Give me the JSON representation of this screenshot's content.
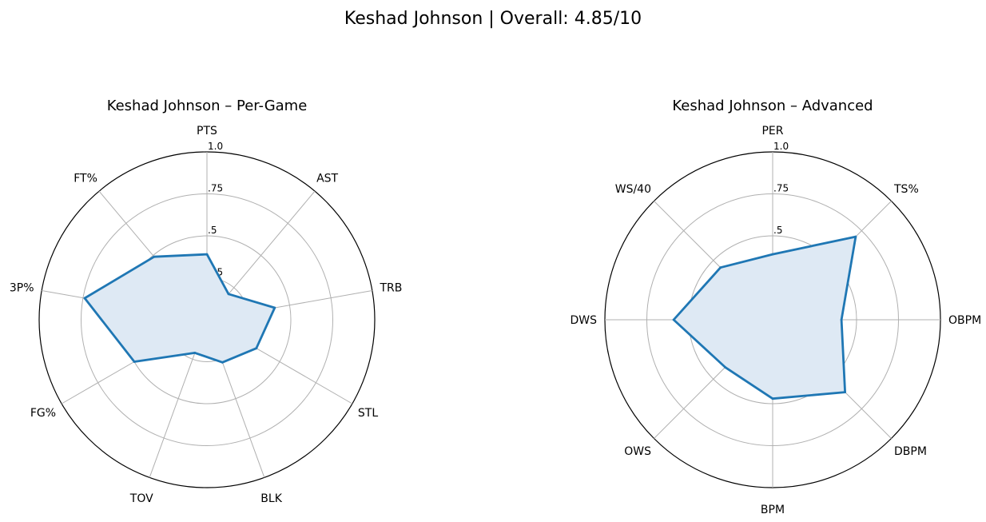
{
  "figure": {
    "suptitle": "Keshad Johnson | Overall: 4.85/10"
  },
  "chart_data": [
    {
      "type": "radar",
      "title": "Keshad Johnson – Per-Game",
      "categories": [
        "PTS",
        "AST",
        "TRB",
        "STL",
        "BLK",
        "TOV",
        "FG%",
        "3P%",
        "FT%"
      ],
      "values": [
        0.39,
        0.2,
        0.41,
        0.34,
        0.27,
        0.21,
        0.5,
        0.74,
        0.49
      ],
      "rlim": [
        0,
        1.0
      ],
      "rticks": [
        0.25,
        0.5,
        0.75,
        1.0
      ],
      "rtick_labels": [
        ".25",
        ".5",
        ".75",
        "1.0"
      ],
      "line_color": "#1f77b4",
      "fill_color": "#dee9f4",
      "grid": true
    },
    {
      "type": "radar",
      "title": "Keshad Johnson – Advanced",
      "categories": [
        "PER",
        "TS%",
        "OBPM",
        "DBPM",
        "BPM",
        "OWS",
        "DWS",
        "WS/40"
      ],
      "values": [
        0.39,
        0.7,
        0.41,
        0.61,
        0.47,
        0.4,
        0.59,
        0.44
      ],
      "rlim": [
        0,
        1.0
      ],
      "rticks": [
        0.25,
        0.5,
        0.75,
        1.0
      ],
      "rtick_labels": [
        ".25",
        ".5",
        ".75",
        "1.0"
      ],
      "line_color": "#1f77b4",
      "fill_color": "#dee9f4",
      "grid": true
    }
  ]
}
